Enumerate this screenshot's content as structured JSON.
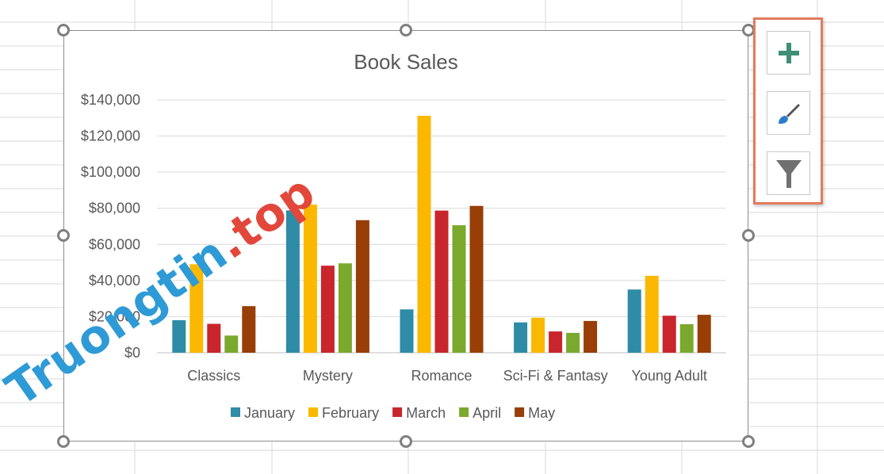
{
  "sheet": {
    "grid_color": "#d9d9d9"
  },
  "chart_tools": {
    "highlight_color": "#e27b5d",
    "buttons": [
      {
        "name": "chart-elements-button",
        "icon": "plus-icon"
      },
      {
        "name": "chart-styles-button",
        "icon": "paintbrush-icon"
      },
      {
        "name": "chart-filters-button",
        "icon": "funnel-icon"
      }
    ]
  },
  "watermark": {
    "part_a": "Truongtin",
    "part_b": ".top"
  },
  "chart_data": {
    "type": "bar",
    "title": "Book Sales",
    "xlabel": "",
    "ylabel": "",
    "categories": [
      "Classics",
      "Mystery",
      "Romance",
      "Sci-Fi & Fantasy",
      "Young Adult"
    ],
    "ylim": [
      0,
      140000
    ],
    "yticks": [
      0,
      20000,
      40000,
      60000,
      80000,
      100000,
      120000,
      140000
    ],
    "ytick_labels": [
      "$0",
      "$20,000",
      "$40,000",
      "$60,000",
      "$80,000",
      "$100,000",
      "$120,000",
      "$140,000"
    ],
    "grid": true,
    "legend_position": "bottom",
    "series": [
      {
        "name": "January",
        "color": "#2e8ca6",
        "values": [
          18000,
          78800,
          24000,
          16800,
          35000
        ]
      },
      {
        "name": "February",
        "color": "#fbb800",
        "values": [
          49000,
          82000,
          131200,
          19400,
          42600
        ]
      },
      {
        "name": "March",
        "color": "#c9252c",
        "values": [
          16000,
          48200,
          78700,
          11800,
          20500
        ]
      },
      {
        "name": "April",
        "color": "#7ba92d",
        "values": [
          9500,
          49500,
          70600,
          11000,
          15800
        ]
      },
      {
        "name": "May",
        "color": "#983e06",
        "values": [
          25800,
          73400,
          81300,
          17600,
          21000
        ]
      }
    ]
  }
}
